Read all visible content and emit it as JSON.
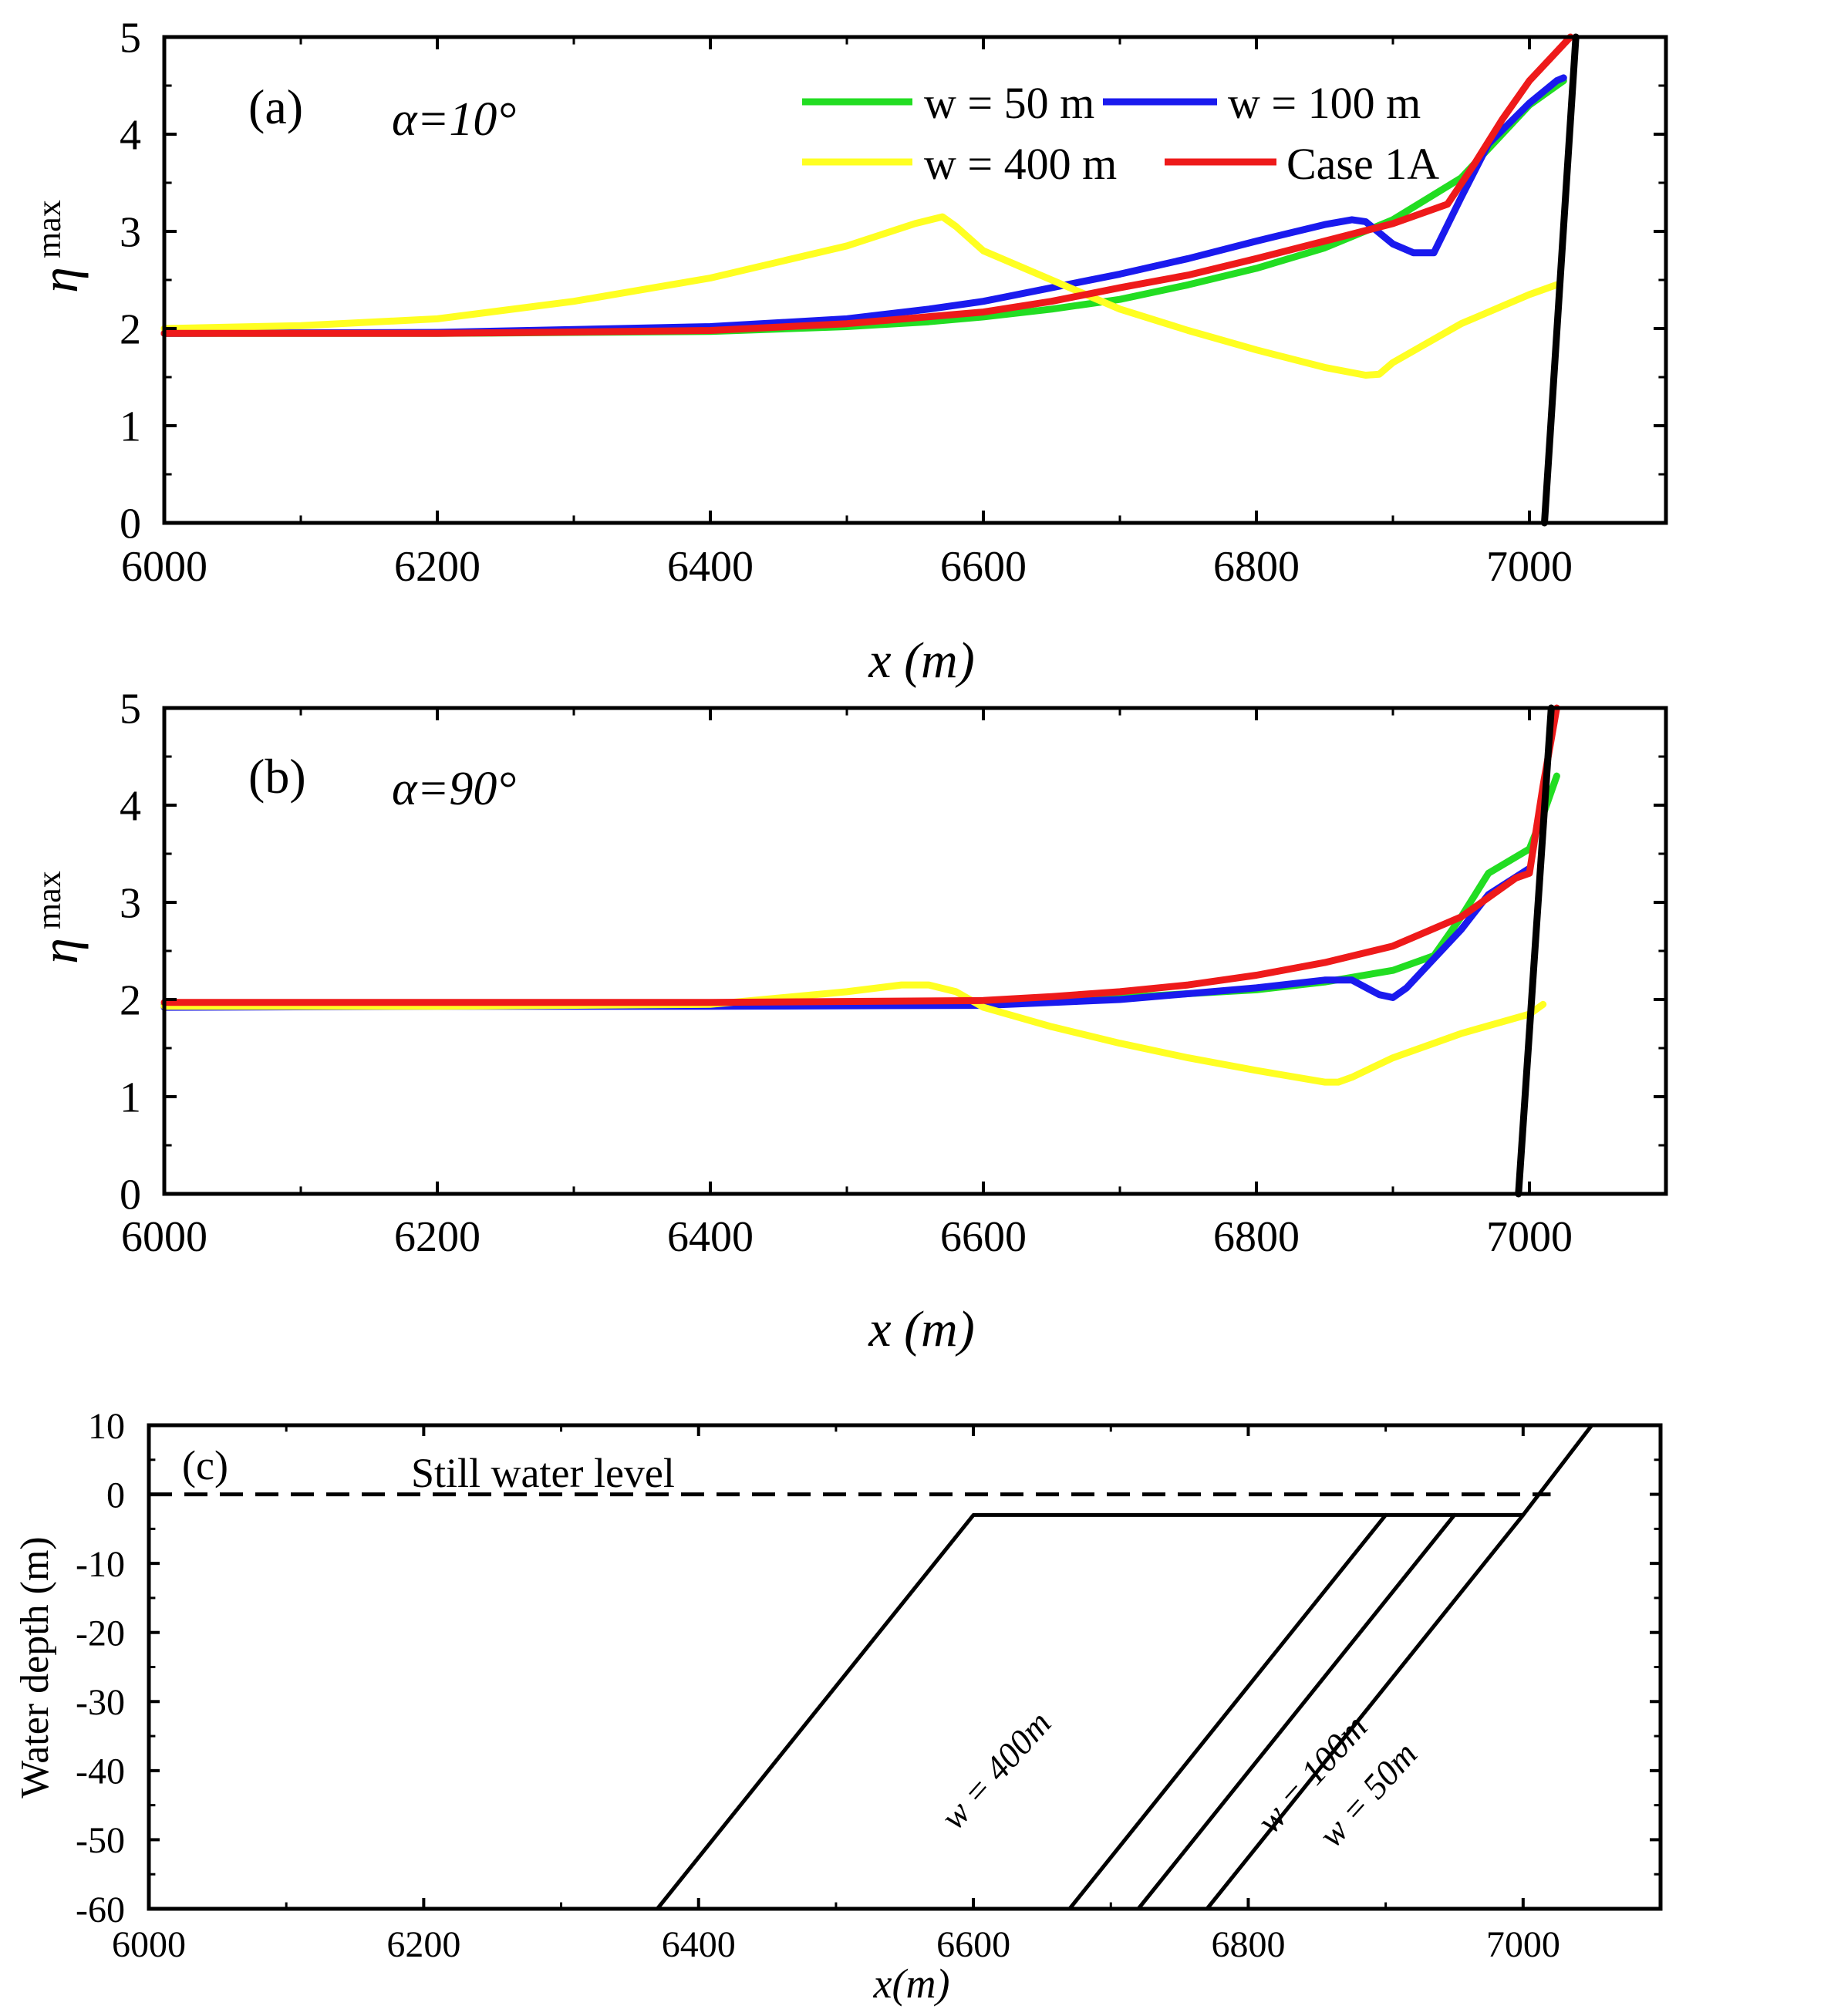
{
  "chart_data": [
    {
      "type": "line",
      "panel_label": "(a)",
      "annotation": "α=10°",
      "xlabel": "x (m)",
      "ylabel": "η",
      "ylabel_sub": "max",
      "xlim": [
        6000,
        7100
      ],
      "ylim": [
        0,
        5
      ],
      "xticks": [
        6000,
        6200,
        6400,
        6600,
        6800,
        7000
      ],
      "yticks": [
        0,
        1,
        2,
        3,
        4,
        5
      ],
      "legend": {
        "placement": "top-center",
        "entries": [
          "w = 50 m",
          "w = 100 m",
          "w = 400 m",
          "Case 1A"
        ]
      },
      "series": [
        {
          "name": "w = 50 m",
          "color": "#22dd22",
          "x": [
            6000,
            6200,
            6400,
            6500,
            6560,
            6600,
            6650,
            6700,
            6750,
            6800,
            6850,
            6900,
            6950,
            7000,
            7020,
            7025
          ],
          "y": [
            1.95,
            1.95,
            1.97,
            2.02,
            2.07,
            2.12,
            2.2,
            2.3,
            2.45,
            2.62,
            2.83,
            3.12,
            3.55,
            4.3,
            4.5,
            4.55
          ]
        },
        {
          "name": "w = 100 m",
          "color": "#1a1aee",
          "x": [
            6000,
            6200,
            6400,
            6500,
            6560,
            6600,
            6650,
            6700,
            6750,
            6800,
            6850,
            6870,
            6880,
            6900,
            6915,
            6925,
            6930,
            6950,
            6970,
            7000,
            7020,
            7025
          ],
          "y": [
            1.95,
            1.96,
            2.02,
            2.1,
            2.2,
            2.28,
            2.42,
            2.56,
            2.72,
            2.9,
            3.07,
            3.12,
            3.1,
            2.87,
            2.78,
            2.78,
            2.78,
            3.35,
            3.9,
            4.32,
            4.55,
            4.58
          ]
        },
        {
          "name": "w = 400 m",
          "color": "#ffff22",
          "x": [
            6000,
            6100,
            6200,
            6300,
            6400,
            6500,
            6550,
            6570,
            6580,
            6600,
            6650,
            6700,
            6750,
            6800,
            6850,
            6880,
            6890,
            6900,
            6950,
            7000,
            7020
          ],
          "y": [
            2.0,
            2.03,
            2.1,
            2.28,
            2.52,
            2.85,
            3.08,
            3.15,
            3.05,
            2.8,
            2.5,
            2.2,
            1.98,
            1.78,
            1.6,
            1.52,
            1.53,
            1.65,
            2.05,
            2.35,
            2.45
          ]
        },
        {
          "name": "Case 1A",
          "color": "#ee1a1a",
          "x": [
            6000,
            6200,
            6400,
            6500,
            6600,
            6650,
            6700,
            6750,
            6800,
            6850,
            6900,
            6940,
            6960,
            6980,
            7000,
            7020,
            7030
          ],
          "y": [
            1.95,
            1.95,
            1.98,
            2.05,
            2.17,
            2.28,
            2.42,
            2.55,
            2.72,
            2.9,
            3.08,
            3.28,
            3.7,
            4.15,
            4.55,
            4.85,
            5.0
          ]
        },
        {
          "name": "slope",
          "color": "#000000",
          "x": [
            7011,
            7034
          ],
          "y": [
            0,
            5
          ]
        }
      ]
    },
    {
      "type": "line",
      "panel_label": "(b)",
      "annotation": "α=90°",
      "xlabel": "x (m)",
      "ylabel": "η",
      "ylabel_sub": "max",
      "xlim": [
        6000,
        7100
      ],
      "ylim": [
        0,
        5
      ],
      "xticks": [
        6000,
        6200,
        6400,
        6600,
        6800,
        7000
      ],
      "yticks": [
        0,
        1,
        2,
        3,
        4,
        5
      ],
      "series": [
        {
          "name": "w = 50 m",
          "color": "#22dd22",
          "x": [
            6000,
            6200,
            6400,
            6600,
            6700,
            6800,
            6850,
            6900,
            6930,
            6950,
            6970,
            7000,
            7010,
            7020
          ],
          "y": [
            1.95,
            1.95,
            1.95,
            1.97,
            2.02,
            2.1,
            2.18,
            2.3,
            2.45,
            2.85,
            3.3,
            3.55,
            3.9,
            4.3
          ]
        },
        {
          "name": "w = 100 m",
          "color": "#1a1aee",
          "x": [
            6000,
            6200,
            6400,
            6600,
            6700,
            6800,
            6850,
            6870,
            6890,
            6900,
            6910,
            6950,
            6970,
            7000
          ],
          "y": [
            1.92,
            1.93,
            1.93,
            1.94,
            2.0,
            2.12,
            2.2,
            2.2,
            2.05,
            2.02,
            2.12,
            2.72,
            3.08,
            3.35
          ]
        },
        {
          "name": "w = 400 m",
          "color": "#ffff22",
          "x": [
            6000,
            6200,
            6400,
            6500,
            6540,
            6560,
            6580,
            6600,
            6650,
            6700,
            6750,
            6800,
            6850,
            6860,
            6870,
            6900,
            6950,
            7000,
            7010
          ],
          "y": [
            1.93,
            1.93,
            1.95,
            2.08,
            2.15,
            2.15,
            2.08,
            1.92,
            1.72,
            1.55,
            1.4,
            1.27,
            1.15,
            1.15,
            1.2,
            1.4,
            1.65,
            1.85,
            1.95
          ]
        },
        {
          "name": "Case 1A",
          "color": "#ee1a1a",
          "x": [
            6000,
            6200,
            6400,
            6600,
            6650,
            6700,
            6750,
            6800,
            6850,
            6900,
            6950,
            6990,
            7000,
            7010,
            7020
          ],
          "y": [
            1.97,
            1.97,
            1.97,
            1.99,
            2.03,
            2.08,
            2.15,
            2.25,
            2.38,
            2.55,
            2.85,
            3.25,
            3.3,
            4.2,
            5.0
          ]
        },
        {
          "name": "slope",
          "color": "#000000",
          "x": [
            6992,
            7016
          ],
          "y": [
            0,
            5
          ]
        }
      ]
    },
    {
      "type": "line",
      "panel_label": "(c)",
      "xlabel": "x(m)",
      "ylabel": "Water depth (m)",
      "xlim": [
        6000,
        7100
      ],
      "ylim": [
        -60,
        10
      ],
      "xticks": [
        6000,
        6200,
        6400,
        6600,
        6800,
        7000
      ],
      "yticks": [
        -60,
        -50,
        -40,
        -30,
        -20,
        -10,
        0,
        10
      ],
      "annotations": [
        "Still water level",
        "w = 400m",
        "w = 100m",
        "w = 50m"
      ],
      "series": [
        {
          "name": "Still water level",
          "style": "dashed",
          "x": [
            6000,
            7020
          ],
          "y": [
            0,
            0
          ]
        },
        {
          "name": "w = 400m",
          "x": [
            6370,
            6600,
            7000
          ],
          "y": [
            -60,
            -3,
            -3
          ]
        },
        {
          "name": "w = 100m",
          "x": [
            6670,
            6900
          ],
          "y": [
            -60,
            -3
          ]
        },
        {
          "name": "w = 50m",
          "x": [
            6720,
            6950
          ],
          "y": [
            -60,
            -3
          ]
        },
        {
          "name": "base slope",
          "x": [
            6770,
            7000,
            7050
          ],
          "y": [
            -60,
            -3,
            10
          ]
        }
      ]
    }
  ]
}
